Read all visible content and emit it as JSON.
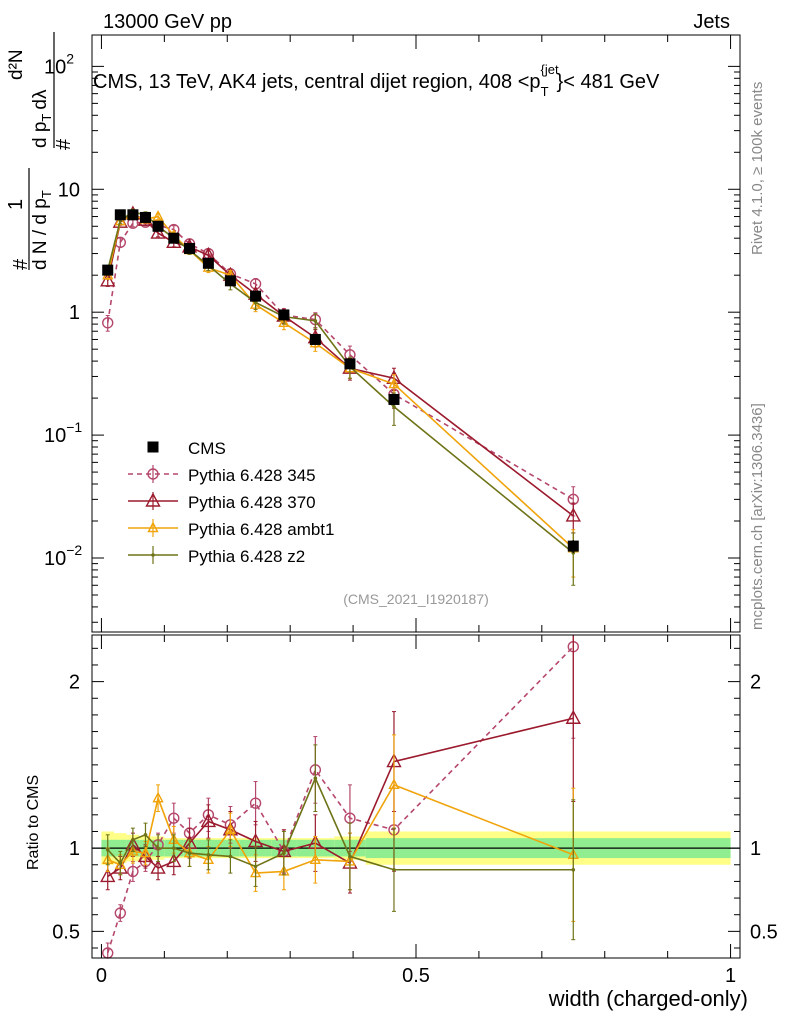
{
  "header": {
    "left": "13000 GeV pp",
    "right": "Jets",
    "side_rivet": "Rivet 4.1.0, ≥ 100k events",
    "side_mcplots": "mcplots.cern.ch [arXiv:1306.3436]"
  },
  "chart_data": {
    "type": "line",
    "title": "CMS, 13 TeV, AK4 jets, central dijet region, 408 < p_T^{jet} < 481 GeV",
    "title_main": "CMS, 13 TeV, AK4 jets, central dijet region, 408 <p",
    "title_sup": "{jet",
    "title_sub": "T",
    "title_end": "}< 481 GeV",
    "analysis_id": "(CMS_2021_I1920187)",
    "xlabel": "width (charged-only)",
    "ylabel": "1/N dN/dλ",
    "ylabel_parts": {
      "num1": "1",
      "den1": "d N / d p",
      "den1_sub": "T",
      "num2": "d²N",
      "den2": "d p",
      "den2_sub": "T",
      "den2_tail": "dλ",
      "hash": "#"
    },
    "ratio_ylabel": "Ratio to CMS",
    "xlim": [
      -0.015,
      1.015
    ],
    "ylim_log": [
      0.0025,
      180
    ],
    "ratio_ylim": [
      0.34,
      2.28
    ],
    "xticks": [
      "0",
      "0.5",
      "1"
    ],
    "xtick_values": [
      0,
      0.5,
      1
    ],
    "yticks": [
      {
        "value": 100,
        "base": "10",
        "exp": "2"
      },
      {
        "value": 10,
        "base": "10",
        "exp": ""
      },
      {
        "value": 1,
        "base": "1",
        "exp": ""
      },
      {
        "value": 0.1,
        "base": "10",
        "exp": "−1"
      },
      {
        "value": 0.01,
        "base": "10",
        "exp": "−2"
      }
    ],
    "ratio_yticks": [
      "0.5",
      "1",
      "2"
    ],
    "ratio_ytick_values": [
      0.5,
      1,
      2
    ],
    "x": [
      0.01,
      0.03,
      0.05,
      0.07,
      0.09,
      0.115,
      0.14,
      0.17,
      0.205,
      0.245,
      0.29,
      0.34,
      0.395,
      0.465,
      0.75
    ],
    "x_edges": [
      0,
      0.02,
      0.04,
      0.06,
      0.08,
      0.1,
      0.13,
      0.15,
      0.19,
      0.22,
      0.27,
      0.31,
      0.37,
      0.42,
      0.5,
      1.0
    ],
    "series": [
      {
        "name": "CMS",
        "color": "#000000",
        "marker": "square",
        "dash": "",
        "legend": "CMS",
        "values": [
          2.2,
          6.2,
          6.2,
          5.9,
          5.0,
          4.0,
          3.3,
          2.5,
          1.8,
          1.35,
          0.95,
          0.6,
          0.38,
          0.195,
          0.0125
        ],
        "err": [
          0.15,
          0.4,
          0.4,
          0.3,
          0.25,
          0.2,
          0.17,
          0.13,
          0.1,
          0.08,
          0.06,
          0.04,
          0.03,
          0.02,
          0.0015
        ]
      },
      {
        "name": "Pythia 6.428 345",
        "color": "#b5476a",
        "marker": "circle",
        "dash": "5,4",
        "legend": "Pythia 6.428 345",
        "values": [
          0.82,
          3.7,
          5.3,
          5.4,
          5.1,
          4.7,
          3.6,
          3.0,
          2.05,
          1.7,
          0.95,
          0.87,
          0.45,
          0.215,
          0.03
        ],
        "err": [
          0.12,
          0.3,
          0.35,
          0.35,
          0.35,
          0.35,
          0.3,
          0.25,
          0.2,
          0.18,
          0.12,
          0.12,
          0.08,
          0.05,
          0.008
        ]
      },
      {
        "name": "Pythia 6.428 370",
        "color": "#9b1a2d",
        "marker": "triangle",
        "dash": "",
        "legend": "Pythia 6.428 370",
        "values": [
          1.8,
          5.4,
          6.3,
          5.6,
          4.4,
          3.7,
          3.4,
          2.9,
          2.0,
          1.4,
          0.93,
          0.62,
          0.35,
          0.29,
          0.022
        ],
        "err": [
          0.18,
          0.3,
          0.35,
          0.35,
          0.3,
          0.3,
          0.27,
          0.25,
          0.2,
          0.15,
          0.12,
          0.1,
          0.07,
          0.06,
          0.006
        ]
      },
      {
        "name": "Pythia 6.428 ambt1",
        "color": "#f0a30a",
        "marker": "triangle-small",
        "dash": "",
        "legend": "Pythia 6.428 ambt1",
        "values": [
          2.0,
          5.5,
          6.1,
          5.7,
          6.0,
          4.2,
          3.2,
          2.3,
          2.0,
          1.15,
          0.82,
          0.56,
          0.35,
          0.26,
          0.012
        ],
        "err": [
          0.15,
          0.3,
          0.35,
          0.35,
          0.35,
          0.3,
          0.25,
          0.2,
          0.18,
          0.14,
          0.1,
          0.08,
          0.06,
          0.05,
          0.005
        ]
      },
      {
        "name": "Pythia 6.428 z2",
        "color": "#6e7317",
        "marker": "dot",
        "dash": "",
        "legend": "Pythia 6.428 z2",
        "values": [
          2.2,
          5.6,
          6.5,
          6.2,
          5.0,
          4.0,
          3.2,
          2.4,
          1.7,
          1.2,
          0.92,
          0.85,
          0.36,
          0.17,
          0.011
        ],
        "err": [
          0.2,
          0.35,
          0.4,
          0.35,
          0.35,
          0.3,
          0.25,
          0.22,
          0.18,
          0.15,
          0.12,
          0.12,
          0.07,
          0.05,
          0.005
        ]
      }
    ],
    "ratio_series": [
      {
        "name": "Pythia 6.428 345",
        "values": [
          0.37,
          0.61,
          0.86,
          0.92,
          1.02,
          1.18,
          1.09,
          1.2,
          1.14,
          1.27,
          0.98,
          1.47,
          1.18,
          1.11,
          2.21
        ],
        "err": [
          0.06,
          0.05,
          0.06,
          0.06,
          0.07,
          0.09,
          0.09,
          0.1,
          0.11,
          0.13,
          0.13,
          0.2,
          0.2,
          0.25,
          0.55
        ]
      },
      {
        "name": "Pythia 6.428 370",
        "values": [
          0.83,
          0.88,
          1.02,
          0.95,
          0.88,
          0.92,
          1.03,
          1.16,
          1.11,
          1.04,
          0.98,
          1.03,
          0.91,
          1.52,
          1.78
        ],
        "err": [
          0.08,
          0.07,
          0.07,
          0.07,
          0.07,
          0.08,
          0.09,
          0.1,
          0.11,
          0.12,
          0.13,
          0.17,
          0.18,
          0.3,
          0.5
        ]
      },
      {
        "name": "Pythia 6.428 ambt1",
        "values": [
          0.93,
          0.9,
          0.98,
          0.97,
          1.3,
          1.05,
          0.97,
          0.93,
          1.11,
          0.85,
          0.86,
          0.93,
          0.92,
          1.38,
          0.96
        ],
        "err": [
          0.07,
          0.06,
          0.07,
          0.07,
          0.08,
          0.08,
          0.08,
          0.08,
          0.1,
          0.11,
          0.11,
          0.14,
          0.17,
          0.3,
          0.4
        ]
      },
      {
        "name": "Pythia 6.428 z2",
        "values": [
          0.99,
          0.91,
          1.05,
          1.08,
          1.0,
          1.0,
          0.97,
          0.96,
          0.95,
          0.89,
          0.97,
          1.42,
          0.95,
          0.87,
          0.87
        ],
        "err": [
          0.09,
          0.07,
          0.07,
          0.07,
          0.08,
          0.08,
          0.08,
          0.09,
          0.1,
          0.12,
          0.13,
          0.2,
          0.2,
          0.25,
          0.42
        ]
      }
    ],
    "ratio_bands": {
      "stat_color": "#90ee90",
      "total_color": "#ffff88",
      "stat": [
        0.05,
        0.05,
        0.05,
        0.05,
        0.05,
        0.05,
        0.05,
        0.05,
        0.05,
        0.05,
        0.05,
        0.05,
        0.05,
        0.06,
        0.06
      ],
      "total": [
        0.1,
        0.09,
        0.08,
        0.07,
        0.07,
        0.06,
        0.06,
        0.06,
        0.06,
        0.06,
        0.06,
        0.06,
        0.07,
        0.1,
        0.1
      ]
    }
  }
}
